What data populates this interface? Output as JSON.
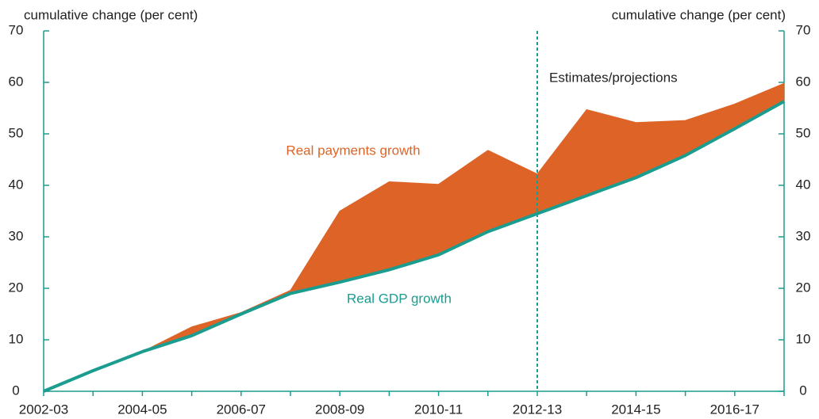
{
  "chart_data": {
    "type": "area-between",
    "y_axis_label": "cumulative change (per cent)",
    "y2_axis_label": "cumulative change (per cent)",
    "categories": [
      "2002-03",
      null,
      "2004-05",
      null,
      "2006-07",
      null,
      "2008-09",
      null,
      "2010-11",
      null,
      "2012-13",
      null,
      "2014-15",
      null,
      "2016-17",
      null
    ],
    "series": [
      {
        "name": "Real payments growth",
        "color": "#dd6426",
        "values": [
          0,
          4,
          7.7,
          12.5,
          15.3,
          19.6,
          35,
          40.7,
          40.2,
          46.8,
          42.2,
          54.7,
          52.2,
          52.6,
          55.8,
          59.8
        ]
      },
      {
        "name": "Real GDP growth",
        "color": "#1a9c8f",
        "values": [
          0,
          4,
          7.7,
          10.8,
          15,
          19,
          21.2,
          23.6,
          26.5,
          31,
          34.5,
          38,
          41.5,
          45.8,
          51,
          56.3
        ]
      }
    ],
    "projection_start": "2012-13",
    "projection_label": "Estimates/projections",
    "ylim": [
      0,
      70
    ],
    "yticks": [
      0,
      10,
      20,
      30,
      40,
      50,
      60,
      70
    ],
    "y2lim": [
      0,
      70
    ],
    "y2ticks": [
      0,
      10,
      20,
      30,
      40,
      50,
      60,
      70
    ]
  }
}
